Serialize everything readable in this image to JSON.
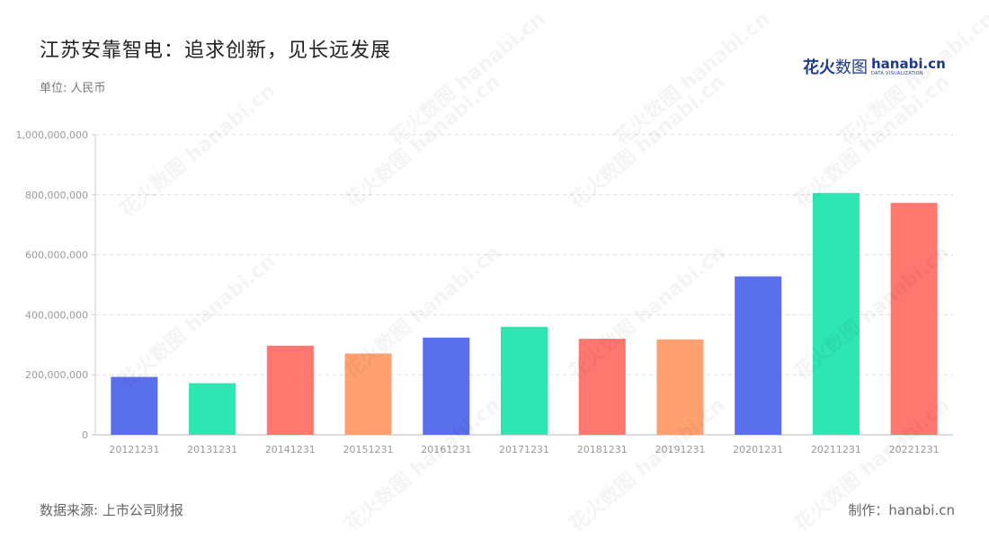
{
  "title": "江苏安靠智电：追求创新，见长远发展",
  "unit": "单位: 人民币",
  "logo": {
    "cn_main": "花火",
    "cn_light": "数图",
    "en": "hanabi.cn",
    "en_sub": "DATA VISUALIZATION"
  },
  "source": "数据来源: 上市公司财报",
  "credit": "制作：hanabi.cn",
  "watermark_text": "花火数图 hanabi.cn",
  "colors": [
    "#5a6fec",
    "#2de6b2",
    "#ff7870",
    "#ffa070"
  ],
  "chart_data": {
    "type": "bar",
    "categories": [
      "20121231",
      "20131231",
      "20141231",
      "20151231",
      "20161231",
      "20171231",
      "20181231",
      "20191231",
      "20201231",
      "20211231",
      "20221231"
    ],
    "values": [
      193000000,
      172000000,
      297000000,
      271000000,
      324000000,
      360000000,
      320000000,
      318000000,
      528000000,
      806000000,
      773000000
    ],
    "ylim": [
      0,
      1000000000
    ],
    "yticks": [
      0,
      200000000,
      400000000,
      600000000,
      800000000,
      1000000000
    ],
    "ytick_labels": [
      "0",
      "200,000,000",
      "400,000,000",
      "600,000,000",
      "800,000,000",
      "1,000,000,000"
    ],
    "grid": true,
    "legend": "none"
  }
}
